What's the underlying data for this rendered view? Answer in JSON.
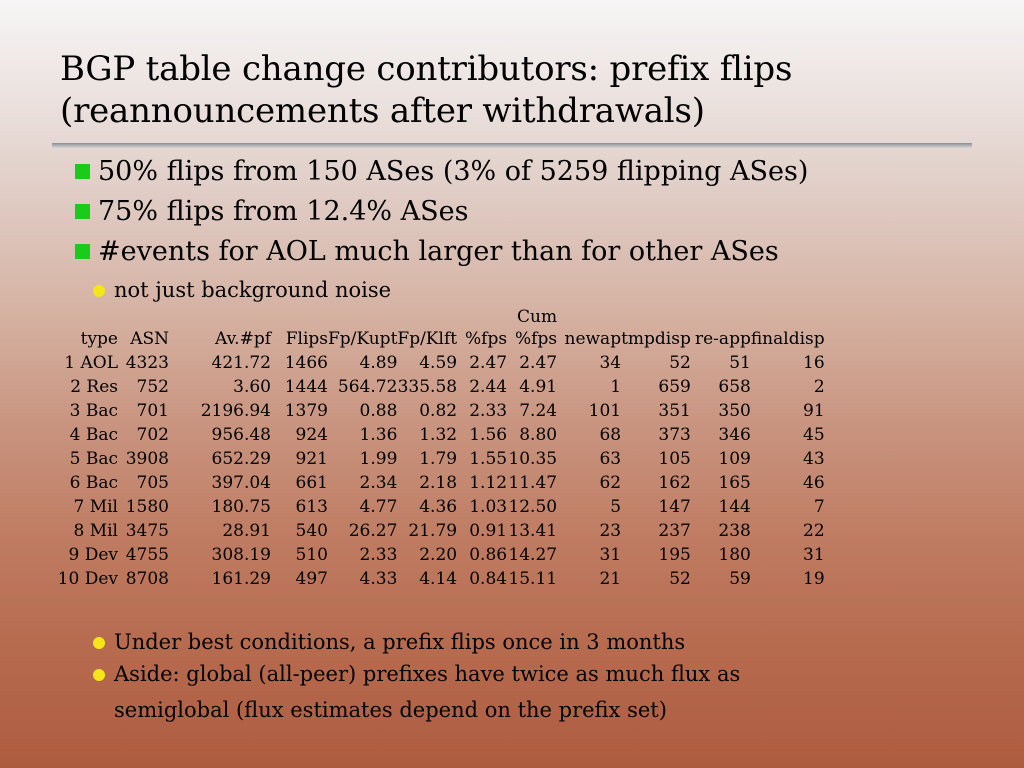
{
  "title": {
    "line1": "BGP table change contributors: prefix flips",
    "line2": "(reannouncements after withdrawals)"
  },
  "bullets": [
    "50% flips from 150 ASes (3% of 5259 flipping ASes)",
    "75% flips from 12.4% ASes",
    "#events for AOL much larger than for other ASes"
  ],
  "sub_bullet": "not just background noise",
  "table": {
    "header_top": [
      "",
      "",
      "",
      "",
      "",
      "",
      "",
      "Cum",
      "",
      "",
      "",
      ""
    ],
    "header": [
      "type",
      "ASN",
      "Av.#pf",
      "Flips",
      "Fp/Kupt",
      "Fp/Klft",
      "%fps",
      "%fps",
      "newap",
      "tmpdisp",
      "re-app",
      "finaldisp"
    ],
    "rows": [
      [
        "1 AOL",
        "4323",
        "421.72",
        "1466",
        "4.89",
        "4.59",
        "2.47",
        "2.47",
        "34",
        "52",
        "51",
        "16"
      ],
      [
        "2 Res",
        "752",
        "3.60",
        "1444",
        "564.72",
        "335.58",
        "2.44",
        "4.91",
        "1",
        "659",
        "658",
        "2"
      ],
      [
        "3 Bac",
        "701",
        "2196.94",
        "1379",
        "0.88",
        "0.82",
        "2.33",
        "7.24",
        "101",
        "351",
        "350",
        "91"
      ],
      [
        "4 Bac",
        "702",
        "956.48",
        "924",
        "1.36",
        "1.32",
        "1.56",
        "8.80",
        "68",
        "373",
        "346",
        "45"
      ],
      [
        "5 Bac",
        "3908",
        "652.29",
        "921",
        "1.99",
        "1.79",
        "1.55",
        "10.35",
        "63",
        "105",
        "109",
        "43"
      ],
      [
        "6 Bac",
        "705",
        "397.04",
        "661",
        "2.34",
        "2.18",
        "1.12",
        "11.47",
        "62",
        "162",
        "165",
        "46"
      ],
      [
        "7 Mil",
        "1580",
        "180.75",
        "613",
        "4.77",
        "4.36",
        "1.03",
        "12.50",
        "5",
        "147",
        "144",
        "7"
      ],
      [
        "8 Mil",
        "3475",
        "28.91",
        "540",
        "26.27",
        "21.79",
        "0.91",
        "13.41",
        "23",
        "237",
        "238",
        "22"
      ],
      [
        "9 Dev",
        "4755",
        "308.19",
        "510",
        "2.33",
        "2.20",
        "0.86",
        "14.27",
        "31",
        "195",
        "180",
        "31"
      ],
      [
        "10 Dev",
        "8708",
        "161.29",
        "497",
        "4.33",
        "4.14",
        "0.84",
        "15.11",
        "21",
        "52",
        "59",
        "19"
      ]
    ]
  },
  "bottom_bullets": [
    {
      "line1": "Under best conditions, a prefix flips once in 3 months",
      "line2": ""
    },
    {
      "line1": "Aside: global (all-peer) prefixes have twice as much flux as",
      "line2": "semiglobal (flux estimates depend on the prefix set)"
    }
  ],
  "colors": {
    "square_bullet": "#19cc19",
    "round_bullet": "#f4e61a",
    "rule": "#8d8f93"
  }
}
